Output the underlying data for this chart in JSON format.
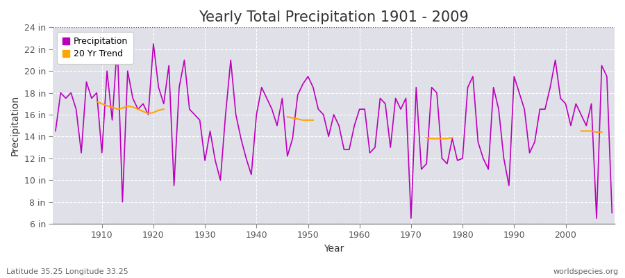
{
  "title": "Yearly Total Precipitation 1901 - 2009",
  "xlabel": "Year",
  "ylabel": "Precipitation",
  "subtitle_left": "Latitude 35.25 Longitude 33.25",
  "subtitle_right": "worldspecies.org",
  "years": [
    1901,
    1902,
    1903,
    1904,
    1905,
    1906,
    1907,
    1908,
    1909,
    1910,
    1911,
    1912,
    1913,
    1914,
    1915,
    1916,
    1917,
    1918,
    1919,
    1920,
    1921,
    1922,
    1923,
    1924,
    1925,
    1926,
    1927,
    1928,
    1929,
    1930,
    1931,
    1932,
    1933,
    1934,
    1935,
    1936,
    1937,
    1938,
    1939,
    1940,
    1941,
    1942,
    1943,
    1944,
    1945,
    1946,
    1947,
    1948,
    1949,
    1950,
    1951,
    1952,
    1953,
    1954,
    1955,
    1956,
    1957,
    1958,
    1959,
    1960,
    1961,
    1962,
    1963,
    1964,
    1965,
    1966,
    1967,
    1968,
    1969,
    1970,
    1971,
    1972,
    1973,
    1974,
    1975,
    1976,
    1977,
    1978,
    1979,
    1980,
    1981,
    1982,
    1983,
    1984,
    1985,
    1986,
    1987,
    1988,
    1989,
    1990,
    1991,
    1992,
    1993,
    1994,
    1995,
    1996,
    1997,
    1998,
    1999,
    2000,
    2001,
    2002,
    2003,
    2004,
    2005,
    2006,
    2007,
    2008,
    2009
  ],
  "precipitation": [
    14.5,
    18.0,
    17.5,
    18.0,
    16.5,
    12.5,
    19.0,
    17.5,
    18.0,
    12.5,
    20.0,
    15.5,
    22.5,
    8.0,
    20.0,
    17.5,
    16.5,
    17.0,
    16.0,
    22.5,
    18.5,
    17.0,
    20.5,
    9.5,
    18.5,
    21.0,
    16.5,
    16.0,
    15.5,
    11.8,
    14.5,
    11.8,
    10.0,
    16.0,
    21.0,
    16.0,
    13.8,
    12.0,
    10.5,
    16.0,
    18.5,
    17.5,
    16.5,
    15.0,
    17.5,
    12.2,
    13.8,
    17.8,
    18.8,
    19.5,
    18.5,
    16.5,
    16.0,
    14.0,
    16.0,
    15.0,
    12.8,
    12.8,
    15.0,
    16.5,
    16.5,
    12.5,
    13.0,
    17.5,
    17.0,
    13.0,
    17.5,
    16.5,
    17.5,
    6.5,
    18.5,
    11.0,
    11.5,
    18.5,
    18.0,
    12.0,
    11.5,
    13.8,
    11.8,
    12.0,
    18.5,
    19.5,
    13.5,
    12.0,
    11.0,
    18.5,
    16.5,
    12.0,
    9.5,
    19.5,
    18.0,
    16.5,
    12.5,
    13.5,
    16.5,
    16.5,
    18.5,
    21.0,
    17.5,
    17.0,
    15.0,
    17.0,
    16.0,
    15.0,
    17.0,
    6.5,
    20.5,
    19.5,
    7.0
  ],
  "trend_segments": [
    {
      "years": [
        1909,
        1910,
        1911,
        1912,
        1913,
        1914,
        1915,
        1916,
        1917,
        1918,
        1919,
        1920,
        1921,
        1922
      ],
      "values": [
        17.2,
        17.0,
        16.8,
        16.7,
        16.5,
        16.6,
        16.8,
        16.7,
        16.5,
        16.3,
        16.1,
        16.2,
        16.4,
        16.5
      ]
    },
    {
      "years": [
        1946,
        1947,
        1948,
        1949,
        1950,
        1951
      ],
      "values": [
        15.8,
        15.7,
        15.6,
        15.5,
        15.5,
        15.5
      ]
    },
    {
      "years": [
        1973,
        1974,
        1975,
        1976,
        1977,
        1978
      ],
      "values": [
        13.9,
        13.8,
        13.8,
        13.8,
        13.8,
        13.9
      ]
    },
    {
      "years": [
        2003,
        2004,
        2005,
        2006,
        2007
      ],
      "values": [
        14.5,
        14.5,
        14.5,
        14.4,
        14.4
      ]
    }
  ],
  "line_color": "#bb00bb",
  "trend_color": "#ffa500",
  "fig_bg_color": "#ffffff",
  "plot_bg_color": "#e0e0e8",
  "grid_color": "#ffffff",
  "spine_color": "#888888",
  "ylim": [
    6,
    24
  ],
  "xlim_min": 1901,
  "xlim_max": 2009,
  "yticks": [
    6,
    8,
    10,
    12,
    14,
    16,
    18,
    20,
    22,
    24
  ],
  "ytick_labels": [
    "6 in",
    "8 in",
    "10 in",
    "12 in",
    "14 in",
    "16 in",
    "18 in",
    "20 in",
    "22 in",
    "24 in"
  ],
  "xticks": [
    1910,
    1920,
    1930,
    1940,
    1950,
    1960,
    1970,
    1980,
    1990,
    2000
  ],
  "title_fontsize": 15,
  "axis_label_fontsize": 10,
  "tick_fontsize": 9,
  "legend_fontsize": 9,
  "subtitle_fontsize": 8
}
